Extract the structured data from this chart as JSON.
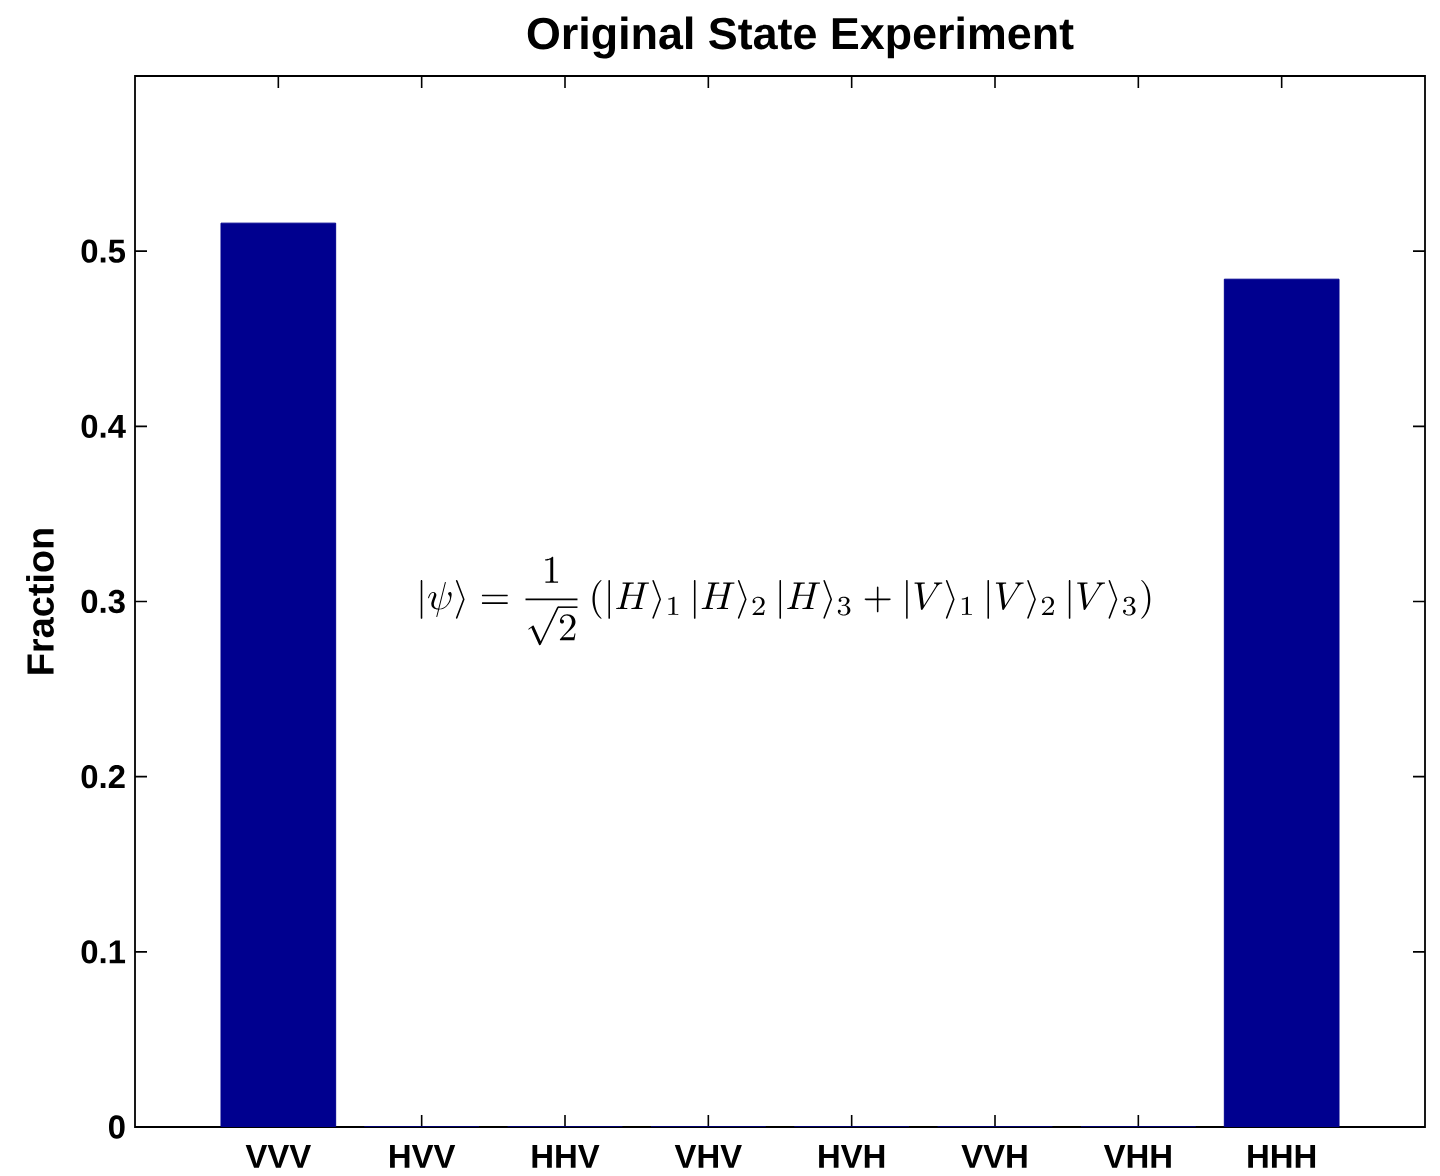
{
  "chart_data": {
    "type": "bar",
    "title": "Original State Experiment",
    "ylabel": "Fraction",
    "categories": [
      "VVV",
      "HVV",
      "HHV",
      "VHV",
      "HVH",
      "VVH",
      "VHH",
      "HHH"
    ],
    "values": [
      0.516,
      0,
      0,
      0,
      0,
      0,
      0,
      0.484
    ],
    "color": "#00008f",
    "ylim": [
      0,
      0.6
    ],
    "yticks": [
      0,
      0.1,
      0.2,
      0.3,
      0.4,
      0.5
    ],
    "annotations": [
      "|\\psi\\rangle = \\frac{1}{\\sqrt{2}}\\,(|H\\rangle_1\\,|H\\rangle_2\\,|H\\rangle_3 + |V\\rangle_1\\,|V\\rangle_2\\,|V\\rangle_3)"
    ]
  }
}
